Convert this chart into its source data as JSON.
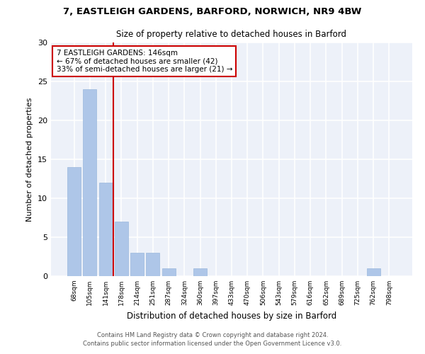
{
  "title1": "7, EASTLEIGH GARDENS, BARFORD, NORWICH, NR9 4BW",
  "title2": "Size of property relative to detached houses in Barford",
  "xlabel": "Distribution of detached houses by size in Barford",
  "ylabel": "Number of detached properties",
  "categories": [
    "68sqm",
    "105sqm",
    "141sqm",
    "178sqm",
    "214sqm",
    "251sqm",
    "287sqm",
    "324sqm",
    "360sqm",
    "397sqm",
    "433sqm",
    "470sqm",
    "506sqm",
    "543sqm",
    "579sqm",
    "616sqm",
    "652sqm",
    "689sqm",
    "725sqm",
    "762sqm",
    "798sqm"
  ],
  "values": [
    14,
    24,
    12,
    7,
    3,
    3,
    1,
    0,
    1,
    0,
    0,
    0,
    0,
    0,
    0,
    0,
    0,
    0,
    0,
    1,
    0
  ],
  "bar_color": "#aec6e8",
  "bar_edgecolor": "#9ab8dc",
  "vline_x": 2.5,
  "vline_color": "#cc0000",
  "annotation_title": "7 EASTLEIGH GARDENS: 146sqm",
  "annotation_line2": "← 67% of detached houses are smaller (42)",
  "annotation_line3": "33% of semi-detached houses are larger (21) →",
  "annotation_box_color": "#cc0000",
  "ylim": [
    0,
    30
  ],
  "yticks": [
    0,
    5,
    10,
    15,
    20,
    25,
    30
  ],
  "footnote1": "Contains HM Land Registry data © Crown copyright and database right 2024.",
  "footnote2": "Contains public sector information licensed under the Open Government Licence v3.0.",
  "bg_color": "#edf1f9"
}
